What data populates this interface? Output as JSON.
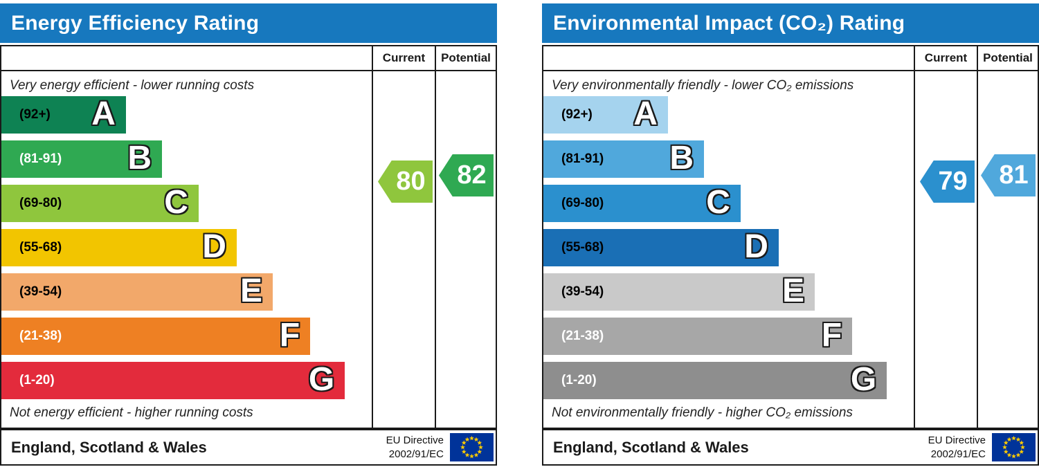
{
  "theme": {
    "header_bg": "#1778be",
    "border": "#1a1a1a",
    "eu_flag_bg": "#003399",
    "eu_star": "#ffcc00"
  },
  "panels": [
    {
      "title": "Energy Efficiency Rating",
      "columns": {
        "current": "Current",
        "potential": "Potential"
      },
      "top_caption": "Very energy efficient - lower running costs",
      "bottom_caption": "Not energy efficient - higher running costs",
      "bands": [
        {
          "letter": "A",
          "range": "(92+)",
          "color": "#0e8253",
          "label_color": "#000000",
          "width_pct": 25.2
        },
        {
          "letter": "B",
          "range": "(81-91)",
          "color": "#2fa952",
          "label_color": "#ffffff",
          "width_pct": 32.5
        },
        {
          "letter": "C",
          "range": "(69-80)",
          "color": "#8fc63d",
          "label_color": "#000000",
          "width_pct": 39.9
        },
        {
          "letter": "D",
          "range": "(55-68)",
          "color": "#f2c500",
          "label_color": "#000000",
          "width_pct": 47.6
        },
        {
          "letter": "E",
          "range": "(39-54)",
          "color": "#f2a86a",
          "label_color": "#000000",
          "width_pct": 54.9
        },
        {
          "letter": "F",
          "range": "(21-38)",
          "color": "#ee8023",
          "label_color": "#ffffff",
          "width_pct": 62.5
        },
        {
          "letter": "G",
          "range": "(1-20)",
          "color": "#e32b3c",
          "label_color": "#ffffff",
          "width_pct": 69.5
        }
      ],
      "current": {
        "value": "80",
        "color": "#8fc63d",
        "band": "C"
      },
      "potential": {
        "value": "82",
        "color": "#2fa952",
        "band": "B"
      },
      "footer": {
        "region": "England, Scotland & Wales",
        "directive_line1": "EU Directive",
        "directive_line2": "2002/91/EC"
      }
    },
    {
      "title": "Environmental Impact (CO₂) Rating",
      "columns": {
        "current": "Current",
        "potential": "Potential"
      },
      "top_caption": "Very environmentally friendly - lower CO₂ emissions",
      "bottom_caption": "Not environmentally friendly - higher CO₂ emissions",
      "bands": [
        {
          "letter": "A",
          "range": "(92+)",
          "color": "#a5d3ee",
          "label_color": "#000000",
          "width_pct": 25.2
        },
        {
          "letter": "B",
          "range": "(81-91)",
          "color": "#50a8dc",
          "label_color": "#000000",
          "width_pct": 32.5
        },
        {
          "letter": "C",
          "range": "(69-80)",
          "color": "#2b90ce",
          "label_color": "#000000",
          "width_pct": 39.9
        },
        {
          "letter": "D",
          "range": "(55-68)",
          "color": "#1a6fb5",
          "label_color": "#000000",
          "width_pct": 47.6
        },
        {
          "letter": "E",
          "range": "(39-54)",
          "color": "#c9c9c9",
          "label_color": "#000000",
          "width_pct": 54.9
        },
        {
          "letter": "F",
          "range": "(21-38)",
          "color": "#a7a7a7",
          "label_color": "#ffffff",
          "width_pct": 62.5
        },
        {
          "letter": "G",
          "range": "(1-20)",
          "color": "#8e8e8e",
          "label_color": "#ffffff",
          "width_pct": 69.5
        }
      ],
      "current": {
        "value": "79",
        "color": "#2b90ce",
        "band": "C"
      },
      "potential": {
        "value": "81",
        "color": "#50a8dc",
        "band": "B"
      },
      "footer": {
        "region": "England, Scotland & Wales",
        "directive_line1": "EU Directive",
        "directive_line2": "2002/91/EC"
      }
    }
  ],
  "chart_data": [
    {
      "type": "bar",
      "title": "Energy Efficiency Rating",
      "categories": [
        "A (92+)",
        "B (81-91)",
        "C (69-80)",
        "D (55-68)",
        "E (39-54)",
        "F (21-38)",
        "G (1-20)"
      ],
      "values": {
        "current": 80,
        "potential": 82
      },
      "current_band": "C",
      "potential_band": "B",
      "scale": [
        1,
        100
      ],
      "top_note": "Very energy efficient - lower running costs",
      "bottom_note": "Not energy efficient - higher running costs",
      "region": "England, Scotland & Wales",
      "directive": "EU Directive 2002/91/EC"
    },
    {
      "type": "bar",
      "title": "Environmental Impact (CO₂) Rating",
      "categories": [
        "A (92+)",
        "B (81-91)",
        "C (69-80)",
        "D (55-68)",
        "E (39-54)",
        "F (21-38)",
        "G (1-20)"
      ],
      "values": {
        "current": 79,
        "potential": 81
      },
      "current_band": "C",
      "potential_band": "B",
      "scale": [
        1,
        100
      ],
      "top_note": "Very environmentally friendly - lower CO₂ emissions",
      "bottom_note": "Not environmentally friendly - higher CO₂ emissions",
      "region": "England, Scotland & Wales",
      "directive": "EU Directive 2002/91/EC"
    }
  ]
}
